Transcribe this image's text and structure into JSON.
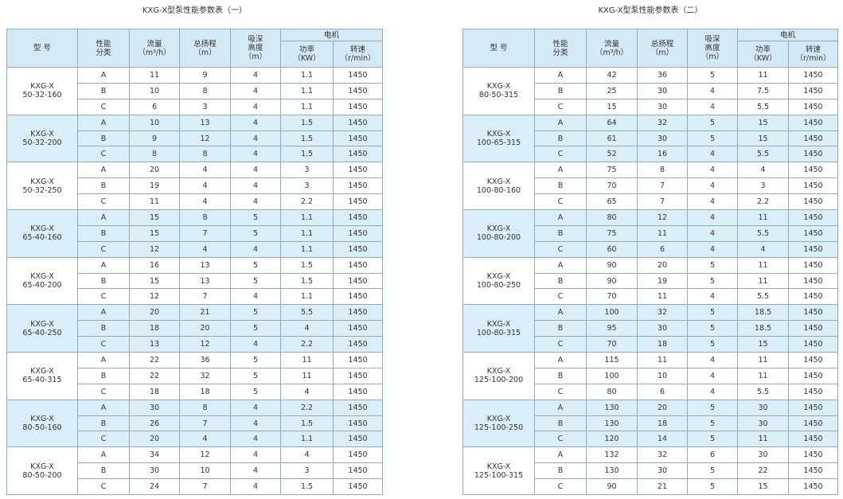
{
  "tables": [
    {
      "title": "KXG-X型泵性能参数表（一）",
      "headers": {
        "model": [
          "型 号"
        ],
        "class": [
          "性能",
          "分类"
        ],
        "flow": [
          "流量",
          "（m³/h）"
        ],
        "head": [
          "总扬程",
          "（m）"
        ],
        "suction": [
          "吸深",
          "高度",
          "（m）"
        ],
        "motor": [
          "电机"
        ],
        "power": [
          "功率",
          "（KW）"
        ],
        "speed": [
          "转速",
          "（r/min）"
        ]
      },
      "groups": [
        {
          "model": [
            "KXG-X",
            "50-32-160"
          ],
          "rows": [
            [
              "A",
              11,
              9,
              4,
              1.1,
              1450
            ],
            [
              "B",
              10,
              8,
              4,
              1.1,
              1450
            ],
            [
              "C",
              6,
              3,
              4,
              1.1,
              1450
            ]
          ]
        },
        {
          "model": [
            "KXG-X",
            "50-32-200"
          ],
          "rows": [
            [
              "A",
              10,
              13,
              4,
              1.5,
              1450
            ],
            [
              "B",
              9,
              12,
              4,
              1.5,
              1450
            ],
            [
              "C",
              8,
              8,
              4,
              1.5,
              1450
            ]
          ]
        },
        {
          "model": [
            "KXG-X",
            "50-32-250"
          ],
          "rows": [
            [
              "A",
              20,
              4,
              4,
              3,
              1450
            ],
            [
              "B",
              19,
              4,
              4,
              3,
              1450
            ],
            [
              "C",
              11,
              4,
              4,
              2.2,
              1450
            ]
          ]
        },
        {
          "model": [
            "KXG-X",
            "65-40-160"
          ],
          "rows": [
            [
              "A",
              15,
              8,
              5,
              1.1,
              1450
            ],
            [
              "B",
              15,
              7,
              5,
              1.1,
              1450
            ],
            [
              "C",
              12,
              4,
              4,
              1.1,
              1450
            ]
          ]
        },
        {
          "model": [
            "KXG-X",
            "65-40-200"
          ],
          "rows": [
            [
              "A",
              16,
              13,
              5,
              1.5,
              1450
            ],
            [
              "B",
              15,
              13,
              5,
              1.5,
              1450
            ],
            [
              "C",
              12,
              7,
              4,
              1.1,
              1450
            ]
          ]
        },
        {
          "model": [
            "KXG-X",
            "65-40-250"
          ],
          "rows": [
            [
              "A",
              20,
              21,
              5,
              5.5,
              1450
            ],
            [
              "B",
              18,
              20,
              5,
              4,
              1450
            ],
            [
              "C",
              13,
              12,
              4,
              2.2,
              1450
            ]
          ]
        },
        {
          "model": [
            "KXG-X",
            "65-40-315"
          ],
          "rows": [
            [
              "A",
              22,
              36,
              5,
              11,
              1450
            ],
            [
              "B",
              22,
              32,
              5,
              11,
              1450
            ],
            [
              "C",
              18,
              18,
              5,
              4,
              1450
            ]
          ]
        },
        {
          "model": [
            "KXG-X",
            "80-50-160"
          ],
          "rows": [
            [
              "A",
              30,
              8,
              4,
              2.2,
              1450
            ],
            [
              "B",
              26,
              7,
              4,
              1.5,
              1450
            ],
            [
              "C",
              20,
              4,
              4,
              1.1,
              1450
            ]
          ]
        },
        {
          "model": [
            "KXG-X",
            "80-50-200"
          ],
          "rows": [
            [
              "A",
              34,
              12,
              4,
              4,
              1450
            ],
            [
              "B",
              30,
              10,
              4,
              3,
              1450
            ],
            [
              "C",
              24,
              7,
              4,
              1.5,
              1450
            ]
          ]
        }
      ]
    },
    {
      "title": "KXG-X型泵性能参数表（二）",
      "headers": {
        "model": [
          "型 号"
        ],
        "class": [
          "性能",
          "分类"
        ],
        "flow": [
          "流量",
          "（m³/h）"
        ],
        "head": [
          "总扬程",
          "（m）"
        ],
        "suction": [
          "吸深",
          "高度",
          "（m）"
        ],
        "motor": [
          "电机"
        ],
        "power": [
          "功率",
          "（KW）"
        ],
        "speed": [
          "转速",
          "（r/min）"
        ]
      },
      "groups": [
        {
          "model": [
            "KXG-X",
            "80-50-315"
          ],
          "rows": [
            [
              "A",
              42,
              36,
              5,
              11,
              1450
            ],
            [
              "B",
              25,
              30,
              4,
              7.5,
              1450
            ],
            [
              "C",
              15,
              30,
              4,
              5.5,
              1450
            ]
          ]
        },
        {
          "model": [
            "KXG-X",
            "100-65-315"
          ],
          "rows": [
            [
              "A",
              64,
              32,
              5,
              15,
              1450
            ],
            [
              "B",
              61,
              30,
              5,
              15,
              1450
            ],
            [
              "C",
              52,
              16,
              4,
              5.5,
              1450
            ]
          ]
        },
        {
          "model": [
            "KXG-X",
            "100-80-160"
          ],
          "rows": [
            [
              "A",
              75,
              8,
              4,
              4,
              1450
            ],
            [
              "B",
              70,
              7,
              4,
              3,
              1450
            ],
            [
              "C",
              65,
              7,
              4,
              2.2,
              1450
            ]
          ]
        },
        {
          "model": [
            "KXG-X",
            "100-80-200"
          ],
          "rows": [
            [
              "A",
              80,
              12,
              4,
              11,
              1450
            ],
            [
              "B",
              75,
              11,
              4,
              5.5,
              1450
            ],
            [
              "C",
              60,
              6,
              4,
              4,
              1450
            ]
          ]
        },
        {
          "model": [
            "KXG-X",
            "100-80-250"
          ],
          "rows": [
            [
              "A",
              90,
              20,
              5,
              11,
              1450
            ],
            [
              "B",
              90,
              19,
              5,
              11,
              1450
            ],
            [
              "C",
              70,
              11,
              4,
              5.5,
              1450
            ]
          ]
        },
        {
          "model": [
            "KXG-X",
            "100-80-315"
          ],
          "rows": [
            [
              "A",
              100,
              32,
              5,
              18.5,
              1450
            ],
            [
              "B",
              95,
              30,
              5,
              18.5,
              1450
            ],
            [
              "C",
              70,
              18,
              5,
              15,
              1450
            ]
          ]
        },
        {
          "model": [
            "KXG-X",
            "125-100-200"
          ],
          "rows": [
            [
              "A",
              115,
              11,
              4,
              11,
              1450
            ],
            [
              "B",
              100,
              10,
              4,
              11,
              1450
            ],
            [
              "C",
              80,
              6,
              4,
              5.5,
              1450
            ]
          ]
        },
        {
          "model": [
            "KXG-X",
            "125-100-250"
          ],
          "rows": [
            [
              "A",
              130,
              20,
              5,
              30,
              1450
            ],
            [
              "B",
              130,
              18,
              5,
              30,
              1450
            ],
            [
              "C",
              120,
              14,
              5,
              11,
              1450
            ]
          ]
        },
        {
          "model": [
            "KXG-X",
            "125-100-315"
          ],
          "rows": [
            [
              "A",
              132,
              32,
              6,
              30,
              1450
            ],
            [
              "B",
              130,
              30,
              5,
              22,
              1450
            ],
            [
              "C",
              90,
              21,
              5,
              15,
              1450
            ]
          ]
        }
      ]
    }
  ]
}
